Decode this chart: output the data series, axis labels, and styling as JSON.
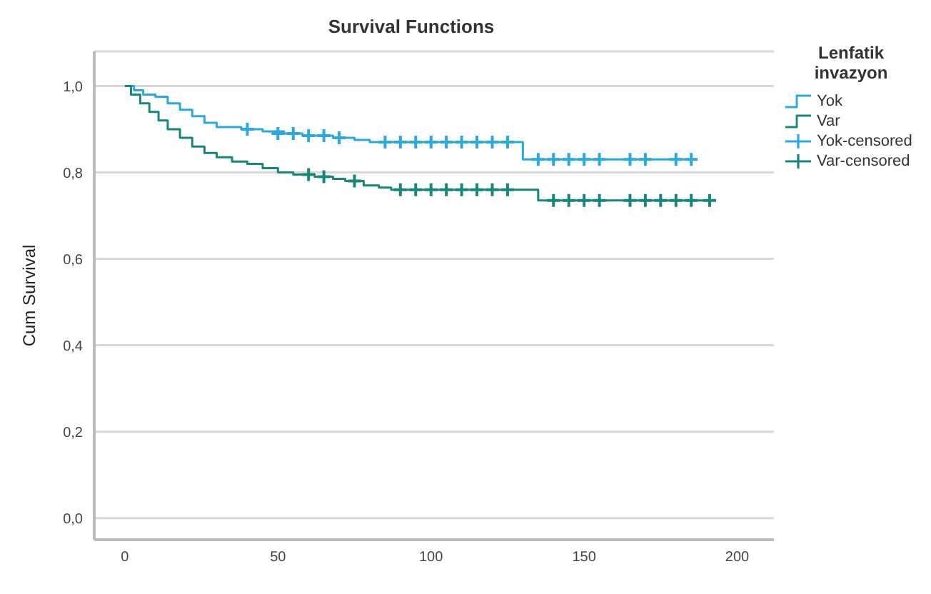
{
  "chart_data": {
    "type": "step",
    "title": "Survival Functions",
    "ylabel": "Cum Survival",
    "legend_title": "Lenfatik invazyon",
    "legend": "right",
    "grid": "y",
    "xlim": [
      -10,
      212
    ],
    "xticks": [
      0,
      50,
      100,
      150,
      200
    ],
    "ylim": [
      -0.05,
      1.08
    ],
    "yticks": [
      {
        "value": 0,
        "label": "0,0"
      },
      {
        "value": 0.2,
        "label": "0,2"
      },
      {
        "value": 0.4,
        "label": "0,4"
      },
      {
        "value": 0.6,
        "label": "0,6"
      },
      {
        "value": 0.8,
        "label": "0,8"
      },
      {
        "value": 1,
        "label": "1,0"
      }
    ],
    "series": [
      {
        "name": "Yok",
        "color": "#2aa9e0",
        "marker": "none",
        "x": [
          0,
          3,
          6,
          10,
          14,
          18,
          22,
          26,
          30,
          38,
          45,
          52,
          58,
          68,
          75,
          80,
          130,
          185
        ],
        "values": [
          1,
          0.99,
          0.98,
          0.975,
          0.96,
          0.945,
          0.93,
          0.915,
          0.905,
          0.9,
          0.895,
          0.89,
          0.885,
          0.88,
          0.875,
          0.87,
          0.83,
          0.83
        ]
      },
      {
        "name": "Var",
        "color": "#17877a",
        "marker": "none",
        "x": [
          0,
          2,
          5,
          8,
          11,
          14,
          18,
          22,
          26,
          30,
          35,
          40,
          45,
          50,
          55,
          62,
          68,
          72,
          78,
          83,
          87,
          135,
          191
        ],
        "values": [
          1,
          0.98,
          0.96,
          0.94,
          0.92,
          0.9,
          0.88,
          0.86,
          0.845,
          0.835,
          0.825,
          0.82,
          0.81,
          0.8,
          0.795,
          0.79,
          0.785,
          0.78,
          0.77,
          0.765,
          0.76,
          0.735,
          0.735
        ]
      },
      {
        "name": "Yok-censored",
        "type": "scatter",
        "color": "#2aa9e0",
        "marker": "cross",
        "x": [
          40,
          50,
          55,
          60,
          65,
          70,
          85,
          90,
          95,
          100,
          105,
          110,
          115,
          120,
          125,
          135,
          140,
          145,
          150,
          155,
          165,
          170,
          180,
          185
        ],
        "values": [
          0.9,
          0.89,
          0.89,
          0.885,
          0.885,
          0.88,
          0.87,
          0.87,
          0.87,
          0.87,
          0.87,
          0.87,
          0.87,
          0.87,
          0.87,
          0.83,
          0.83,
          0.83,
          0.83,
          0.83,
          0.83,
          0.83,
          0.83,
          0.83
        ]
      },
      {
        "name": "Var-censored",
        "type": "scatter",
        "color": "#17877a",
        "marker": "cross",
        "x": [
          60,
          65,
          75,
          90,
          95,
          100,
          105,
          110,
          115,
          120,
          125,
          140,
          145,
          150,
          155,
          165,
          170,
          175,
          180,
          185,
          191
        ],
        "values": [
          0.795,
          0.79,
          0.78,
          0.76,
          0.76,
          0.76,
          0.76,
          0.76,
          0.76,
          0.76,
          0.76,
          0.735,
          0.735,
          0.735,
          0.735,
          0.735,
          0.735,
          0.735,
          0.735,
          0.735,
          0.735
        ]
      }
    ]
  }
}
